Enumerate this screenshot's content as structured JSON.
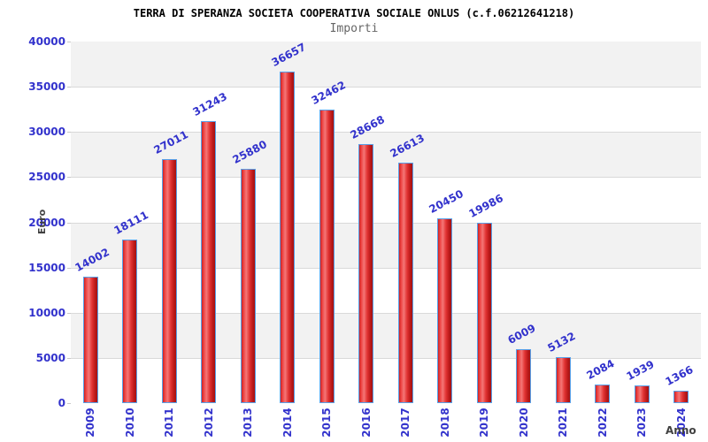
{
  "header": {
    "title": "TERRA DI SPERANZA SOCIETA COOPERATIVA SOCIALE ONLUS (c.f.06212641218)",
    "subtitle": "Importi"
  },
  "chart_data": {
    "type": "bar",
    "title": "TERRA DI SPERANZA SOCIETA COOPERATIVA SOCIALE ONLUS (c.f.06212641218)",
    "subtitle": "Importi",
    "categories": [
      "2009",
      "2010",
      "2011",
      "2012",
      "2013",
      "2014",
      "2015",
      "2016",
      "2017",
      "2018",
      "2019",
      "2020",
      "2021",
      "2022",
      "2023",
      "2024"
    ],
    "values": [
      14002,
      18111,
      27011,
      31243,
      25880,
      36657,
      32462,
      28668,
      26613,
      20450,
      19986,
      6009,
      5132,
      2084,
      1939,
      1366
    ],
    "xlabel": "Anno",
    "ylabel": "Euro",
    "ylim": [
      0,
      40000
    ],
    "ytick_step": 5000,
    "yticks": [
      0,
      5000,
      10000,
      15000,
      20000,
      25000,
      30000,
      35000,
      40000
    ],
    "grid": "horizontal-bands",
    "legend": "none",
    "colors": {
      "bar_border": "#58a0e8",
      "bar_gradient": [
        "#cc2222",
        "#ee4444",
        "#f47676",
        "#e23333",
        "#b81818",
        "#a51212"
      ],
      "value_label": "#3232cc",
      "tick_label": "#3232cc",
      "axis_title": "#404040",
      "band_alt": "#f2f2f2",
      "plot_border": "#c8c8c8",
      "gridline": "#d9d9d9"
    }
  }
}
